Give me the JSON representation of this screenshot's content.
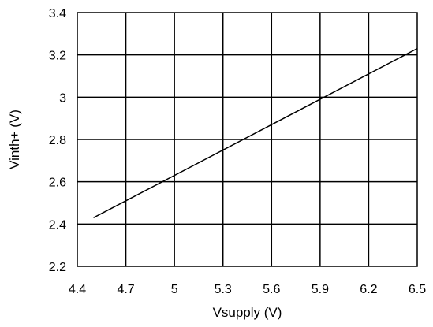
{
  "chart_data": {
    "type": "line",
    "title": "",
    "xlabel": "Vsupply (V)",
    "ylabel": "Vinth+ (V)",
    "xlim": [
      4.4,
      6.5
    ],
    "ylim": [
      2.2,
      3.4
    ],
    "grid": true,
    "x_ticks": [
      "4.4",
      "4.7",
      "5",
      "5.3",
      "5.6",
      "5.9",
      "6.2",
      "6.5"
    ],
    "y_ticks": [
      "2.2",
      "2.4",
      "2.6",
      "2.8",
      "3",
      "3.2",
      "3.4"
    ],
    "series": [
      {
        "x": [
          4.5,
          6.5
        ],
        "y": [
          2.43,
          3.23
        ]
      }
    ]
  }
}
